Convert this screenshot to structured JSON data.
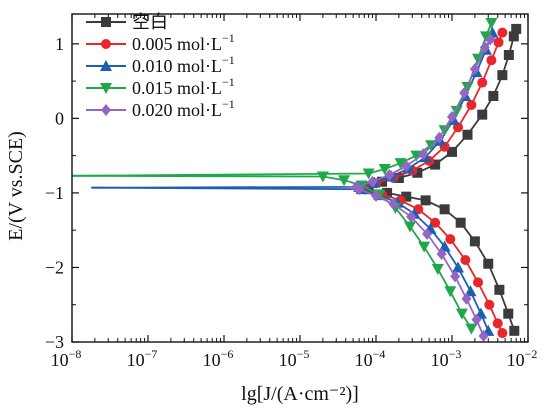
{
  "chart_data": {
    "type": "line",
    "title": "",
    "xlabel": "lg[J/(A·cm⁻²)]",
    "ylabel": "E/(V vs.SCE)",
    "x_scale": "log",
    "xlim": [
      1e-08,
      0.01
    ],
    "ylim": [
      -3,
      1.4
    ],
    "x_ticks": [
      {
        "value": 1e-08,
        "mantissa": "10",
        "exp": "−8"
      },
      {
        "value": 1e-07,
        "mantissa": "10",
        "exp": "−7"
      },
      {
        "value": 1e-06,
        "mantissa": "10",
        "exp": "−6"
      },
      {
        "value": 1e-05,
        "mantissa": "10",
        "exp": "−5"
      },
      {
        "value": 0.0001,
        "mantissa": "10",
        "exp": "−4"
      },
      {
        "value": 0.001,
        "mantissa": "10",
        "exp": "−3"
      },
      {
        "value": 0.01,
        "mantissa": "10",
        "exp": "−2"
      }
    ],
    "y_ticks": [
      {
        "value": 1,
        "label": "1"
      },
      {
        "value": 0,
        "label": "0"
      },
      {
        "value": -1,
        "label": "−1"
      },
      {
        "value": -2,
        "label": "−2"
      },
      {
        "value": -3,
        "label": "−3"
      }
    ],
    "legend_position": "top-left",
    "series": [
      {
        "name": "空白",
        "color": "#3b3b3b",
        "marker": "square",
        "ecorr": -0.93,
        "flat_left_x": 6e-05,
        "anodic": [
          [
            7.6e-05,
            -0.92
          ],
          [
            0.00012,
            -0.85
          ],
          [
            0.0002,
            -0.8
          ],
          [
            0.00035,
            -0.73
          ],
          [
            0.0006,
            -0.62
          ],
          [
            0.001,
            -0.45
          ],
          [
            0.0016,
            -0.22
          ],
          [
            0.0025,
            0.05
          ],
          [
            0.0035,
            0.3
          ],
          [
            0.0046,
            0.58
          ],
          [
            0.0056,
            0.85
          ],
          [
            0.0065,
            1.1
          ],
          [
            0.007,
            1.2
          ]
        ],
        "cathodic": [
          [
            8e-05,
            -0.95
          ],
          [
            0.00014,
            -1.0
          ],
          [
            0.00025,
            -1.05
          ],
          [
            0.00045,
            -1.1
          ],
          [
            0.0008,
            -1.22
          ],
          [
            0.0013,
            -1.4
          ],
          [
            0.002,
            -1.65
          ],
          [
            0.003,
            -1.95
          ],
          [
            0.0042,
            -2.3
          ],
          [
            0.0055,
            -2.62
          ],
          [
            0.0066,
            -2.85
          ]
        ]
      },
      {
        "name": "0.005 mol·L",
        "unit_exp": "−1",
        "color": "#e8262b",
        "marker": "circle",
        "ecorr": -0.93,
        "flat_left_x": 5e-05,
        "anodic": [
          [
            6.5e-05,
            -0.92
          ],
          [
            0.0001,
            -0.87
          ],
          [
            0.00017,
            -0.8
          ],
          [
            0.0003,
            -0.7
          ],
          [
            0.0005,
            -0.57
          ],
          [
            0.0008,
            -0.38
          ],
          [
            0.0012,
            -0.12
          ],
          [
            0.0018,
            0.18
          ],
          [
            0.0025,
            0.48
          ],
          [
            0.0033,
            0.78
          ],
          [
            0.0041,
            1.02
          ],
          [
            0.0046,
            1.15
          ]
        ],
        "cathodic": [
          [
            7e-05,
            -0.95
          ],
          [
            0.00012,
            -1.02
          ],
          [
            0.00021,
            -1.1
          ],
          [
            0.00036,
            -1.22
          ],
          [
            0.0006,
            -1.4
          ],
          [
            0.00095,
            -1.62
          ],
          [
            0.0015,
            -1.9
          ],
          [
            0.0022,
            -2.2
          ],
          [
            0.0031,
            -2.5
          ],
          [
            0.004,
            -2.75
          ],
          [
            0.0046,
            -2.88
          ]
        ]
      },
      {
        "name": "0.010 mol·L",
        "unit_exp": "−1",
        "color": "#1c5fb0",
        "marker": "triangle-up",
        "ecorr": -0.93,
        "flat_left_x": 1.8e-08,
        "anodic": [
          [
            6e-05,
            -0.92
          ],
          [
            9.5e-05,
            -0.86
          ],
          [
            0.00016,
            -0.78
          ],
          [
            0.00027,
            -0.67
          ],
          [
            0.00045,
            -0.52
          ],
          [
            0.0007,
            -0.3
          ],
          [
            0.00105,
            -0.02
          ],
          [
            0.0015,
            0.3
          ],
          [
            0.0021,
            0.62
          ],
          [
            0.0028,
            0.92
          ],
          [
            0.0034,
            1.15
          ]
        ],
        "cathodic": [
          [
            6.5e-05,
            -0.95
          ],
          [
            0.00011,
            -1.03
          ],
          [
            0.00019,
            -1.13
          ],
          [
            0.00032,
            -1.28
          ],
          [
            0.00052,
            -1.48
          ],
          [
            0.0008,
            -1.72
          ],
          [
            0.0012,
            -2.0
          ],
          [
            0.00175,
            -2.32
          ],
          [
            0.0024,
            -2.62
          ],
          [
            0.003,
            -2.85
          ]
        ]
      },
      {
        "name": "0.015 mol·L",
        "unit_exp": "−1",
        "color": "#1fa84a",
        "marker": "triangle-down",
        "ecorr": -0.77,
        "flat_left_x": 1e-08,
        "anodic": [
          [
            8e-05,
            -0.74
          ],
          [
            0.00013,
            -0.68
          ],
          [
            0.00021,
            -0.6
          ],
          [
            0.00034,
            -0.5
          ],
          [
            0.00053,
            -0.36
          ],
          [
            0.0008,
            -0.16
          ],
          [
            0.00115,
            0.1
          ],
          [
            0.0016,
            0.42
          ],
          [
            0.0022,
            0.8
          ],
          [
            0.0028,
            1.1
          ],
          [
            0.0033,
            1.28
          ]
        ],
        "cathodic": [
          [
            2e-05,
            -0.78
          ],
          [
            3.8e-05,
            -0.83
          ],
          [
            6.5e-05,
            -0.9
          ],
          [
            0.00011,
            -1.02
          ],
          [
            0.00018,
            -1.2
          ],
          [
            0.00028,
            -1.45
          ],
          [
            0.00043,
            -1.72
          ],
          [
            0.00065,
            -2.02
          ],
          [
            0.00095,
            -2.32
          ],
          [
            0.00135,
            -2.62
          ],
          [
            0.0018,
            -2.82
          ]
        ]
      },
      {
        "name": "0.020 mol·L",
        "unit_exp": "−1",
        "color": "#9466c4",
        "marker": "diamond",
        "ecorr": -0.93,
        "flat_left_x": 4e-05,
        "anodic": [
          [
            5.5e-05,
            -0.92
          ],
          [
            9e-05,
            -0.85
          ],
          [
            0.00015,
            -0.76
          ],
          [
            0.00025,
            -0.64
          ],
          [
            0.00042,
            -0.48
          ],
          [
            0.00068,
            -0.26
          ],
          [
            0.001,
            0.02
          ],
          [
            0.00145,
            0.34
          ],
          [
            0.002,
            0.66
          ],
          [
            0.0027,
            0.95
          ],
          [
            0.0032,
            1.06
          ]
        ],
        "cathodic": [
          [
            6e-05,
            -0.95
          ],
          [
            0.0001,
            -1.04
          ],
          [
            0.00017,
            -1.15
          ],
          [
            0.00029,
            -1.32
          ],
          [
            0.00047,
            -1.55
          ],
          [
            0.00073,
            -1.82
          ],
          [
            0.0011,
            -2.12
          ],
          [
            0.00155,
            -2.42
          ],
          [
            0.0021,
            -2.7
          ],
          [
            0.0026,
            -2.92
          ]
        ]
      }
    ]
  }
}
